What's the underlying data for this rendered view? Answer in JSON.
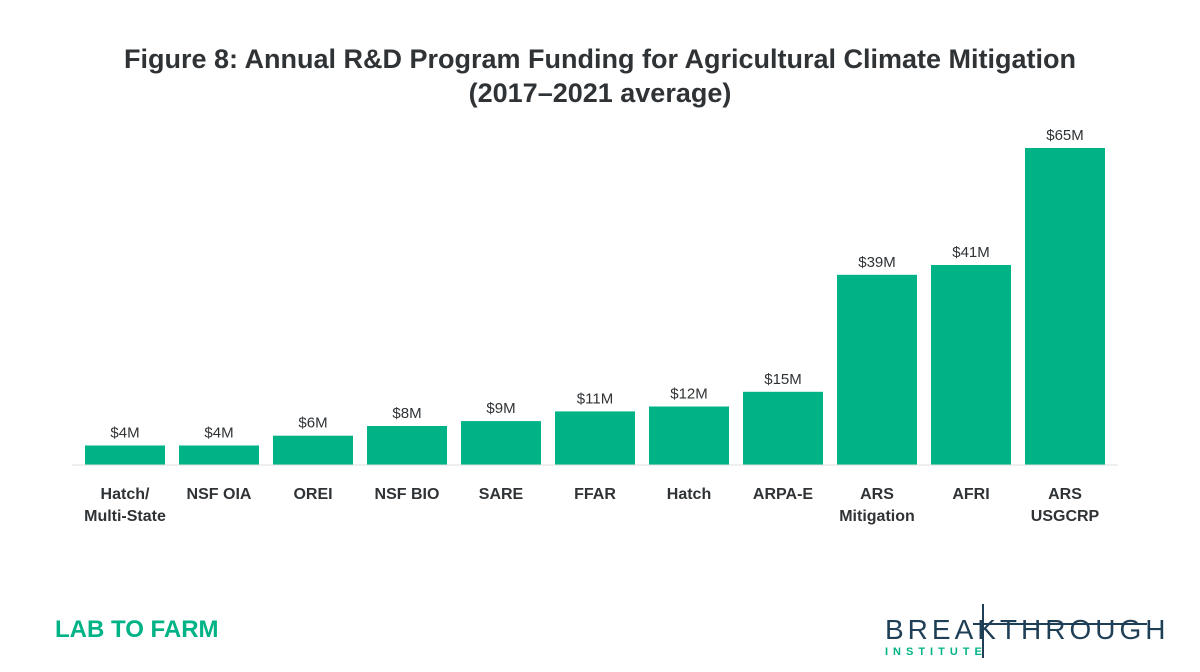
{
  "chart_data": {
    "type": "bar",
    "title": "Figure 8: Annual R&D Program Funding for Agricultural Climate Mitigation",
    "subtitle": "(2017–2021 average)",
    "categories": [
      [
        "Hatch/",
        "Multi-State"
      ],
      [
        "NSF OIA"
      ],
      [
        "OREI"
      ],
      [
        "NSF BIO"
      ],
      [
        "SARE"
      ],
      [
        "FFAR"
      ],
      [
        "Hatch"
      ],
      [
        "ARPA-E"
      ],
      [
        "ARS",
        "Mitigation"
      ],
      [
        "AFRI"
      ],
      [
        "ARS",
        "USGCRP"
      ]
    ],
    "values": [
      4,
      4,
      6,
      8,
      9,
      11,
      12,
      15,
      39,
      41,
      65
    ],
    "value_labels": [
      "$4M",
      "$4M",
      "$6M",
      "$8M",
      "$9M",
      "$11M",
      "$12M",
      "$15M",
      "$39M",
      "$41M",
      "$65M"
    ],
    "units": "$M",
    "xlabel": "",
    "ylabel": "",
    "ylim": [
      0,
      65
    ],
    "grid": false,
    "bar_color": "#00b386"
  },
  "footer": {
    "left_brand": "LAB TO FARM",
    "logo_word": "BREAKTHROUGH",
    "logo_sub": "INSTITUTE"
  },
  "colors": {
    "accent": "#00b386",
    "text": "#2f3336",
    "logo_navy": "#1f3f57"
  }
}
